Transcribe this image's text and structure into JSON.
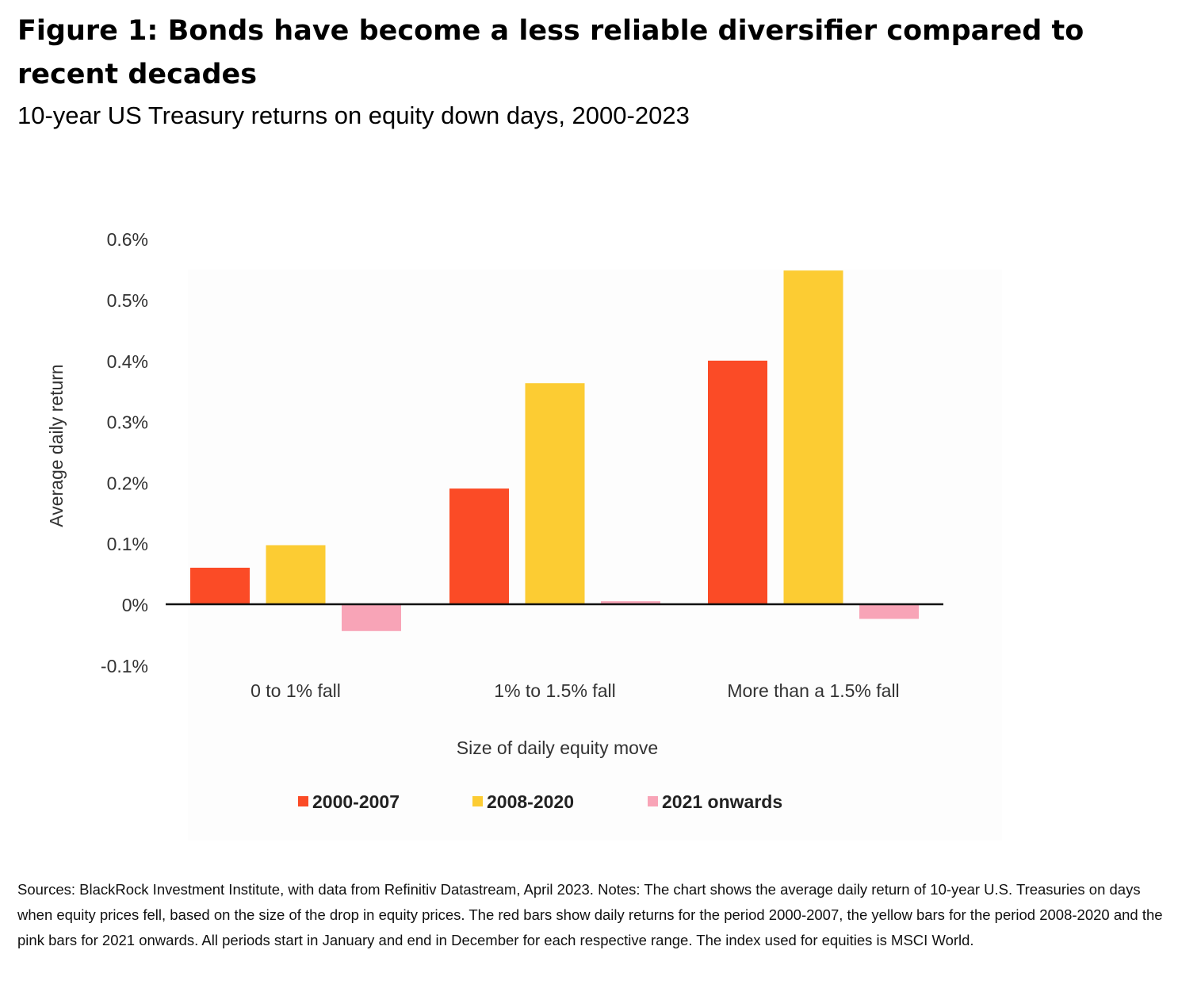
{
  "title": "Figure 1: Bonds have become a less reliable diversifier compared to recent decades",
  "subtitle": "10-year US Treasury returns on equity down days, 2000-2023",
  "notes": "Sources: BlackRock Investment Institute, with data from Refinitiv Datastream, April 2023. Notes: The chart shows the average daily return of 10-year U.S. Treasuries on days when equity prices fell, based on the size of the drop in equity prices. The red bars show daily returns for the period 2000-2007, the yellow bars for the period 2008-2020 and the pink bars for 2021 onwards. All periods start in January and end in December for each respective range. The index used for equities is MSCI World.",
  "chart_data": {
    "type": "bar",
    "title": "10-year US Treasury returns on equity down days, 2000-2023",
    "xlabel": "Size of daily equity move",
    "ylabel": "Average daily return",
    "categories": [
      "0 to 1% fall",
      "1% to 1.5% fall",
      "More than a 1.5% fall"
    ],
    "series": [
      {
        "name": "2000-2007",
        "color": "#fb4b26",
        "values": [
          0.06,
          0.19,
          0.4
        ]
      },
      {
        "name": "2008-2020",
        "color": "#fccc33",
        "values": [
          0.097,
          0.363,
          0.548
        ]
      },
      {
        "name": "2021 onwards",
        "color": "#f8a4b7",
        "values": [
          -0.044,
          0.005,
          -0.024
        ]
      }
    ],
    "ylim": [
      -0.1,
      0.6
    ],
    "yticks": [
      {
        "value": 0.6,
        "label": "0.6%"
      },
      {
        "value": 0.5,
        "label": "0.5%"
      },
      {
        "value": 0.4,
        "label": "0.4%"
      },
      {
        "value": 0.3,
        "label": "0.3%"
      },
      {
        "value": 0.2,
        "label": "0.2%"
      },
      {
        "value": 0.1,
        "label": "0.1%"
      },
      {
        "value": 0.0,
        "label": "0%"
      },
      {
        "value": -0.1,
        "label": "-0.1%"
      }
    ],
    "grid": false,
    "legend_position": "bottom"
  }
}
